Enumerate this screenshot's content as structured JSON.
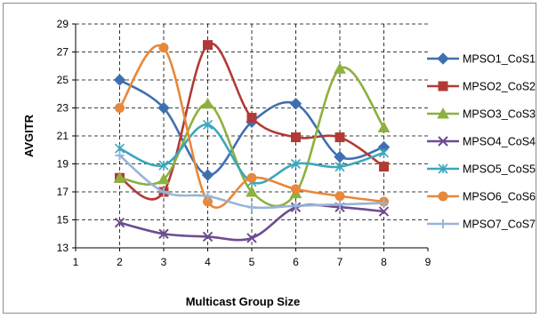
{
  "chart_data": {
    "type": "line",
    "title": "",
    "xlabel": "Multicast Group Size",
    "ylabel": "AVGITR",
    "xlim": [
      1,
      9
    ],
    "ylim": [
      13,
      29
    ],
    "x_ticks": [
      "1",
      "2",
      "3",
      "4",
      "5",
      "6",
      "7",
      "8",
      "9"
    ],
    "y_ticks": [
      "13",
      "15",
      "17",
      "19",
      "21",
      "23",
      "25",
      "27",
      "29"
    ],
    "grid": "horizontal and vertical dashed",
    "smooth": true,
    "legend_position": "right",
    "x": [
      2,
      3,
      4,
      5,
      6,
      7,
      8
    ],
    "series": [
      {
        "name": "MPSO1_CoS1",
        "color": "#3f6fb0",
        "marker": "diamond",
        "values": [
          25.0,
          23.0,
          18.2,
          22.0,
          23.3,
          19.5,
          20.2
        ]
      },
      {
        "name": "MPSO2_CoS2",
        "color": "#b23a36",
        "marker": "square",
        "values": [
          18.0,
          17.0,
          27.5,
          22.3,
          20.9,
          20.9,
          18.8
        ]
      },
      {
        "name": "MPSO3_CoS3",
        "color": "#8eb03e",
        "marker": "triangle",
        "values": [
          18.0,
          17.9,
          23.3,
          17.0,
          16.9,
          25.8,
          21.6
        ]
      },
      {
        "name": "MPSO4_CoS4",
        "color": "#6d4c90",
        "marker": "x",
        "values": [
          14.8,
          14.0,
          13.8,
          13.7,
          15.9,
          15.9,
          15.6
        ]
      },
      {
        "name": "MPSO5_CoS5",
        "color": "#3aa7bd",
        "marker": "asterisk",
        "values": [
          20.1,
          18.9,
          21.8,
          17.7,
          19.0,
          18.8,
          19.8
        ]
      },
      {
        "name": "MPSO6_CoS6",
        "color": "#e8883a",
        "marker": "circle",
        "values": [
          23.0,
          27.3,
          16.3,
          18.0,
          17.2,
          16.7,
          16.3
        ]
      },
      {
        "name": "MPSO7_CoS7",
        "color": "#97b3d8",
        "marker": "plus",
        "values": [
          19.6,
          17.0,
          16.7,
          15.9,
          16.0,
          16.1,
          16.2
        ]
      }
    ]
  }
}
